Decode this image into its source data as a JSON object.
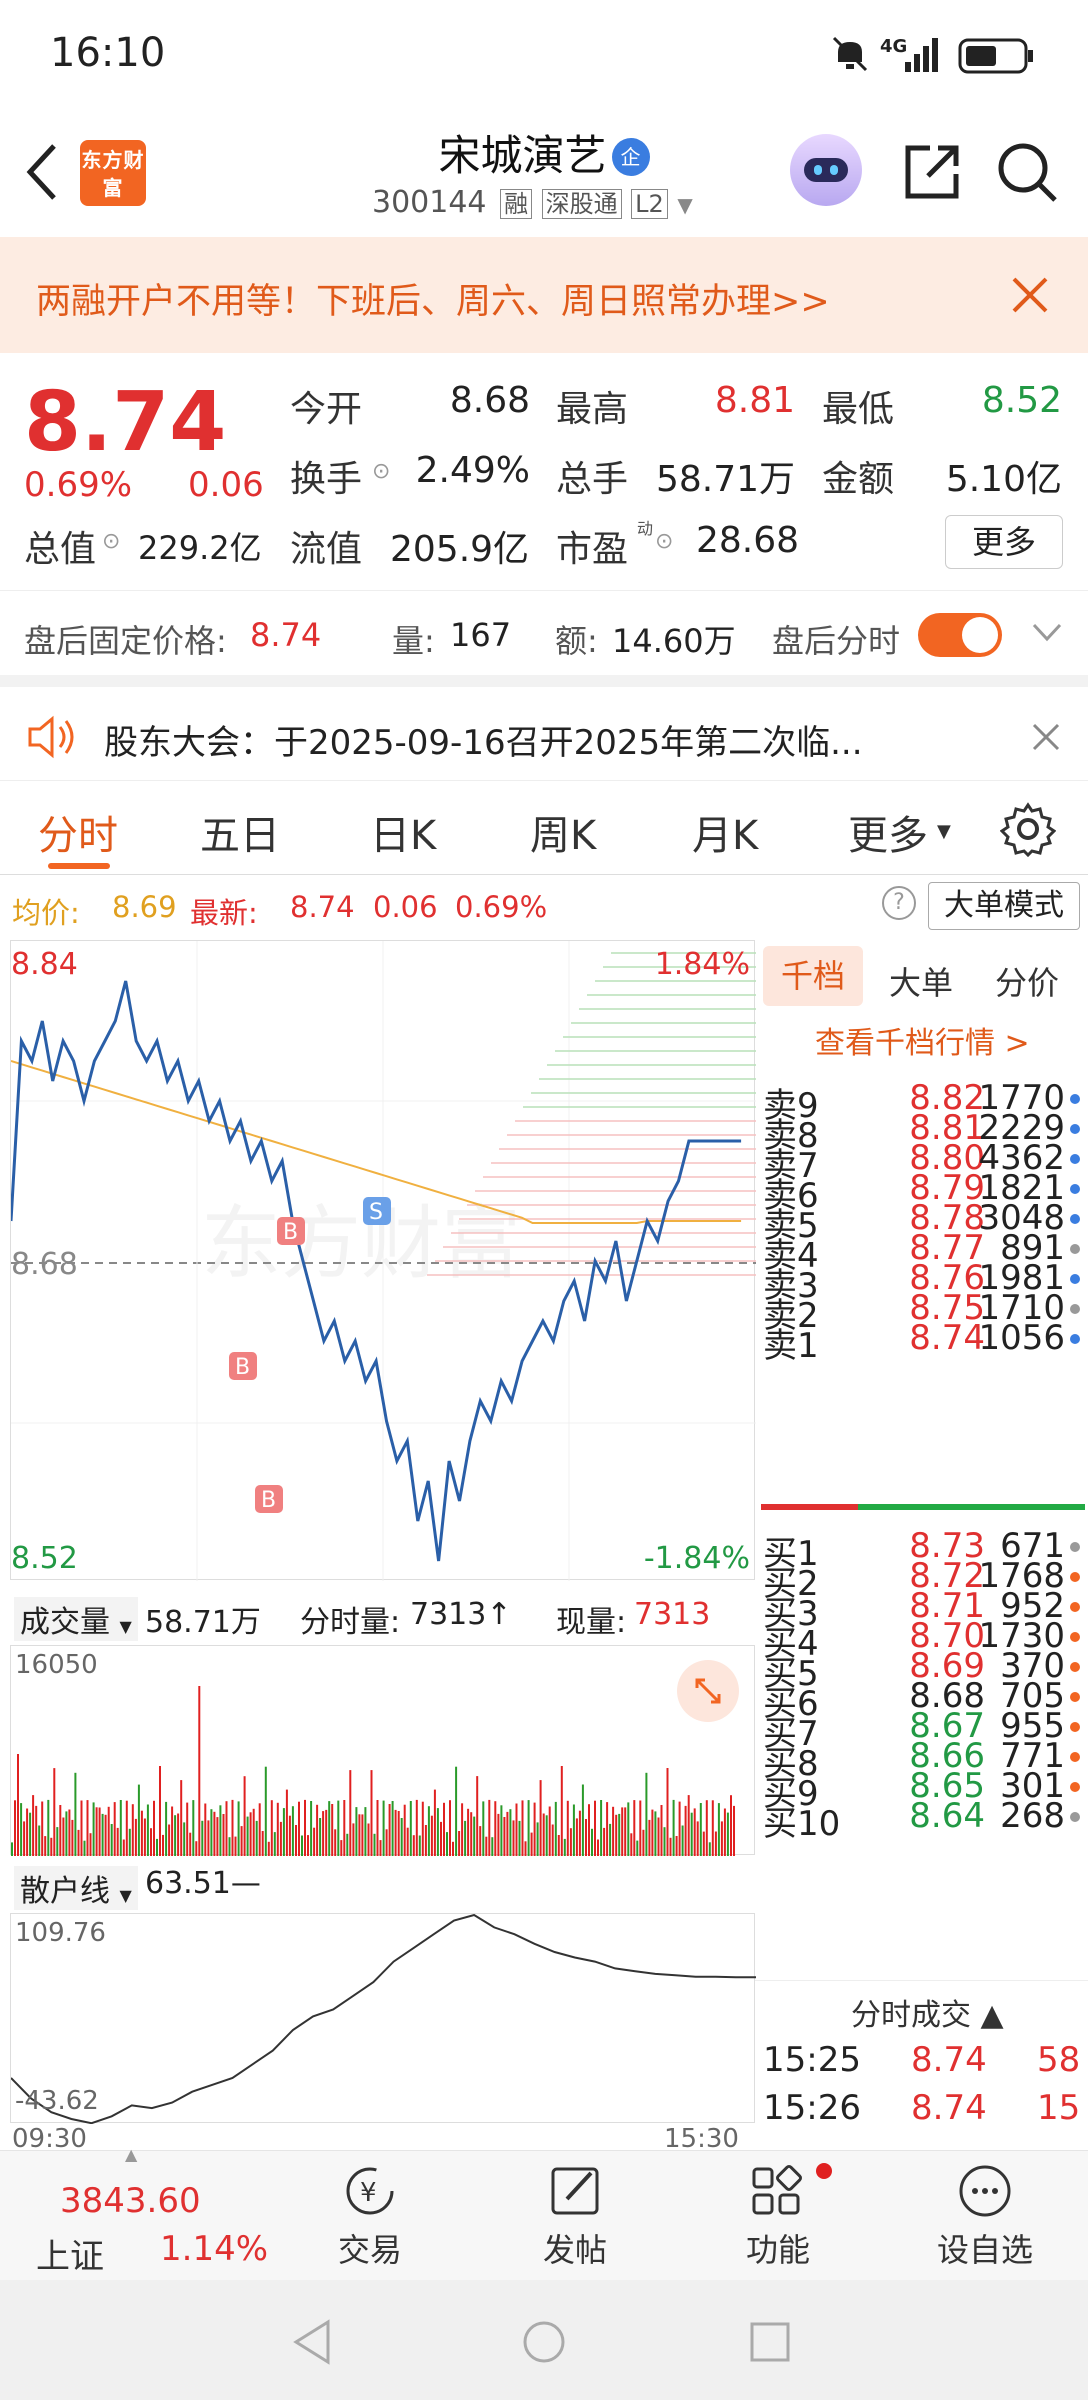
{
  "status_bar": {
    "time": "16:10",
    "network": "4G"
  },
  "header": {
    "logo_text": "东方财富",
    "stock_name": "宋城演艺",
    "badge": "企",
    "code": "300144",
    "tags": [
      "融",
      "深股通",
      "L2"
    ]
  },
  "banner": {
    "text": "两融开户不用等！下班后、周六、周日照常办理>>"
  },
  "quote": {
    "price": "8.74",
    "change_pct": "0.69%",
    "change": "0.06",
    "fields": [
      {
        "label": "今开",
        "value": "8.68"
      },
      {
        "label": "最高",
        "value": "8.81"
      },
      {
        "label": "最低",
        "value": "8.52"
      },
      {
        "label": "换手",
        "value": "2.49%"
      },
      {
        "label": "总手",
        "value": "58.71万"
      },
      {
        "label": "金额",
        "value": "5.10亿"
      },
      {
        "label": "总值",
        "value": "229.2亿"
      },
      {
        "label": "流值",
        "value": "205.9亿"
      },
      {
        "label": "市盈",
        "value": "28.68"
      }
    ],
    "pe_sup": "动",
    "more_button": "更多"
  },
  "after_hours": {
    "price_label": "盘后固定价格:",
    "price": "8.74",
    "vol_label": "量:",
    "vol": "167",
    "amt_label": "额:",
    "amt": "14.60万",
    "toggle_label": "盘后分时"
  },
  "notice": {
    "text": "股东大会：于2025-09-16召开2025年第二次临..."
  },
  "tabs": [
    "分时",
    "五日",
    "日K",
    "周K",
    "月K",
    "更多"
  ],
  "info_bar": {
    "avg_label": "均价:",
    "avg": "8.69",
    "latest_label": "最新:",
    "latest": "8.74",
    "chg": "0.06",
    "pct": "0.69%",
    "mode_button": "大单模式"
  },
  "chart": {
    "y_high": "8.84",
    "y_mid": "8.68",
    "y_low": "8.52",
    "pct_high": "1.84%",
    "pct_low": "-1.84%",
    "marker_b": "B",
    "marker_s": "S",
    "watermark": "东方财富"
  },
  "volume": {
    "selector": "成交量",
    "total": "58.71万",
    "period_label": "分时量:",
    "period_value": "7313↑",
    "now_label": "现量:",
    "now_value": "7313",
    "max": "16050"
  },
  "retail": {
    "selector": "散户线",
    "value": "63.51—",
    "max": "109.76",
    "min": "-43.62",
    "time_start": "09:30",
    "time_end": "15:30"
  },
  "order_book": {
    "tabs": [
      "千档",
      "大单",
      "分价"
    ],
    "link": "查看千档行情 >",
    "asks": [
      {
        "name": "卖9",
        "price": "8.82",
        "vol": "1770"
      },
      {
        "name": "卖8",
        "price": "8.81",
        "vol": "2229"
      },
      {
        "name": "卖7",
        "price": "8.80",
        "vol": "4362"
      },
      {
        "name": "卖6",
        "price": "8.79",
        "vol": "1821"
      },
      {
        "name": "卖5",
        "price": "8.78",
        "vol": "3048"
      },
      {
        "name": "卖4",
        "price": "8.77",
        "vol": "891"
      },
      {
        "name": "卖3",
        "price": "8.76",
        "vol": "1981"
      },
      {
        "name": "卖2",
        "price": "8.75",
        "vol": "1710"
      },
      {
        "name": "卖1",
        "price": "8.74",
        "vol": "1056"
      }
    ],
    "bids": [
      {
        "name": "买1",
        "price": "8.73",
        "vol": "671"
      },
      {
        "name": "买2",
        "price": "8.72",
        "vol": "1768"
      },
      {
        "name": "买3",
        "price": "8.71",
        "vol": "952"
      },
      {
        "name": "买4",
        "price": "8.70",
        "vol": "1730"
      },
      {
        "name": "买5",
        "price": "8.69",
        "vol": "370"
      },
      {
        "name": "买6",
        "price": "8.68",
        "vol": "705"
      },
      {
        "name": "买7",
        "price": "8.67",
        "vol": "955"
      },
      {
        "name": "买8",
        "price": "8.66",
        "vol": "771"
      },
      {
        "name": "买9",
        "price": "8.65",
        "vol": "301"
      },
      {
        "name": "买10",
        "price": "8.64",
        "vol": "268"
      }
    ],
    "trades_title": "分时成交 ▲",
    "trades": [
      {
        "time": "15:25",
        "price": "8.74",
        "vol": "58"
      },
      {
        "time": "15:26",
        "price": "8.74",
        "vol": "15"
      }
    ]
  },
  "bottom_bar": {
    "index_value": "3843.60",
    "index_name": "上证",
    "index_pct": "1.14%",
    "items": [
      "交易",
      "发帖",
      "功能",
      "设自选"
    ]
  },
  "colors": {
    "up": "#e03030",
    "down": "#229944",
    "accent": "#f26522",
    "line": "#2a5fa8",
    "avg": "#f0b040"
  }
}
